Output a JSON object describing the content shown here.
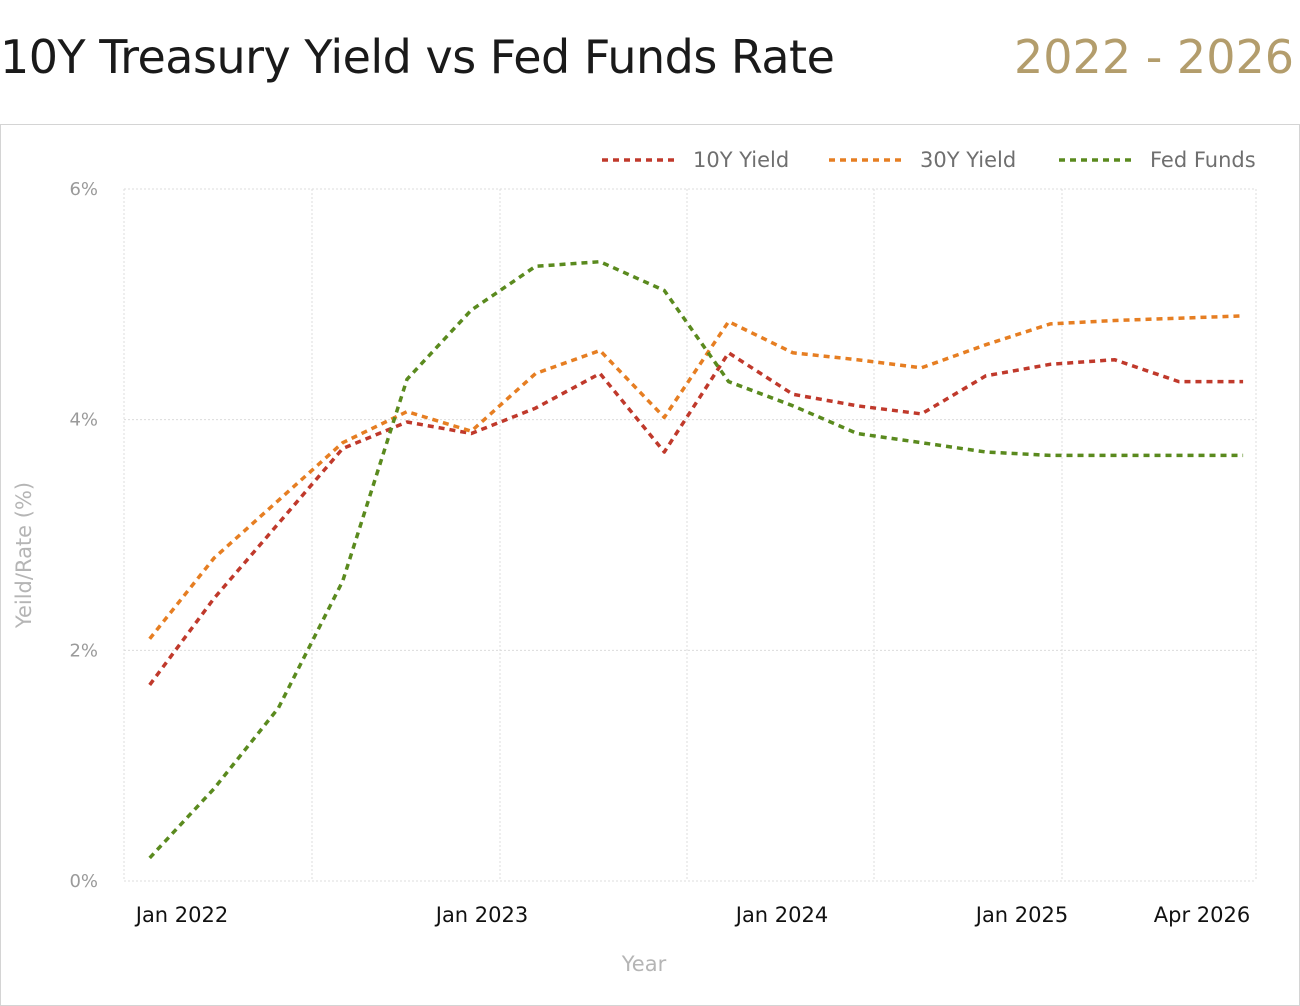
{
  "header": {
    "title": "10Y Treasury Yield vs Fed Funds Rate",
    "range": "2022 - 2026"
  },
  "chart_data": {
    "type": "line",
    "title": "10Y Treasury Yield vs Fed Funds Rate",
    "subtitle": "2022 - 2026",
    "xlabel": "Year",
    "ylabel": "Yeild/Rate (%)",
    "ylim": [
      0,
      6
    ],
    "yticks": [
      0,
      2,
      4,
      6
    ],
    "ytick_labels": [
      "0%",
      "2%",
      "4%",
      "6%"
    ],
    "xlim": [
      2021.9,
      2026.3
    ],
    "xticks": [
      2022,
      2023,
      2024,
      2025,
      2026.25
    ],
    "xtick_labels": [
      "Jan 2022",
      "Jan 2023",
      "Jan 2024",
      "Jan 2025",
      "Apr 2026"
    ],
    "grid": true,
    "legend_position": "top-right",
    "series": [
      {
        "name": "10Y Yield",
        "color": "#c0392b",
        "x": [
          2022.0,
          2022.25,
          2022.5,
          2022.75,
          2023.0,
          2023.25,
          2023.5,
          2023.75,
          2024.0,
          2024.25,
          2024.5,
          2024.75,
          2025.0,
          2025.25,
          2025.5,
          2025.75,
          2026.0,
          2026.25
        ],
        "y": [
          1.7,
          2.45,
          3.1,
          3.75,
          3.98,
          3.88,
          4.1,
          4.4,
          3.72,
          4.58,
          4.22,
          4.12,
          4.05,
          4.38,
          4.48,
          4.52,
          4.33,
          4.33
        ]
      },
      {
        "name": "30Y Yield",
        "color": "#e67e22",
        "x": [
          2022.0,
          2022.25,
          2022.5,
          2022.75,
          2023.0,
          2023.25,
          2023.5,
          2023.75,
          2024.0,
          2024.25,
          2024.5,
          2024.75,
          2025.0,
          2025.25,
          2025.5,
          2025.75,
          2026.0,
          2026.25
        ],
        "y": [
          2.1,
          2.8,
          3.3,
          3.8,
          4.07,
          3.9,
          4.4,
          4.6,
          4.02,
          4.85,
          4.58,
          4.52,
          4.45,
          4.65,
          4.83,
          4.86,
          4.88,
          4.9
        ]
      },
      {
        "name": "Fed Funds",
        "color": "#5a8a1e",
        "x": [
          2022.0,
          2022.25,
          2022.5,
          2022.75,
          2023.0,
          2023.25,
          2023.5,
          2023.75,
          2024.0,
          2024.25,
          2024.5,
          2024.75,
          2025.0,
          2025.25,
          2025.5,
          2025.75,
          2026.0,
          2026.25
        ],
        "y": [
          0.2,
          0.8,
          1.5,
          2.6,
          4.35,
          4.95,
          5.33,
          5.37,
          5.12,
          4.33,
          4.12,
          3.88,
          3.8,
          3.72,
          3.69,
          3.69,
          3.69,
          3.69
        ]
      }
    ]
  }
}
